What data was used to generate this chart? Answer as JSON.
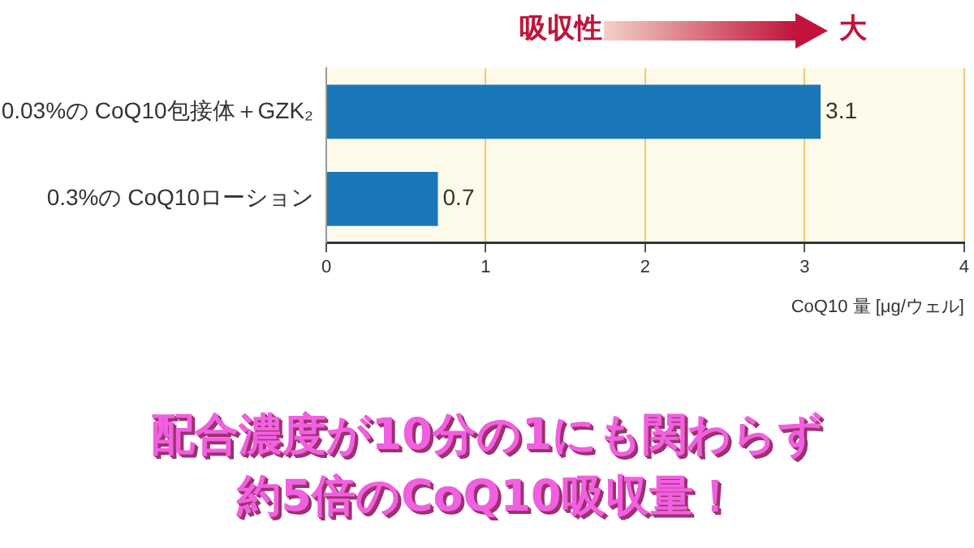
{
  "chart_data": {
    "type": "bar",
    "orientation": "horizontal",
    "categories": [
      "0.03%の CoQ10包接体＋GZK₂",
      "0.3%の CoQ10ローション"
    ],
    "values": [
      3.1,
      0.7
    ],
    "color": "#1a78b8",
    "data_labels": true,
    "xlim": [
      0,
      4
    ],
    "xticks": [
      0,
      1,
      2,
      3,
      4
    ],
    "xlabel": "CoQ10 量 [μg/ウェル]",
    "grid": "x",
    "legend": false,
    "annotations": [
      "吸収性",
      "大",
      "配合濃度が10分の1にも関わらず",
      "約5倍のCoQ10吸収量！"
    ]
  }
}
